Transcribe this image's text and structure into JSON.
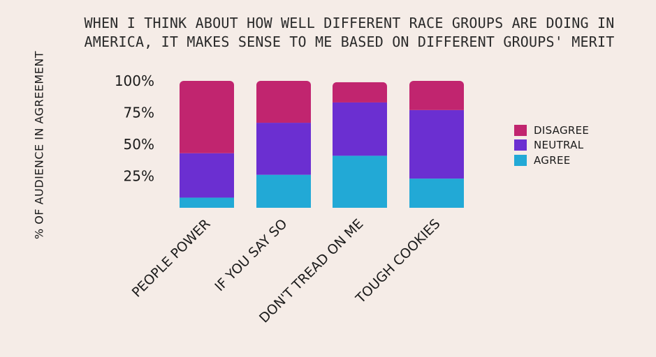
{
  "title": {
    "line1": "WHEN I THINK ABOUT HOW WELL DIFFERENT RACE GROUPS ARE DOING IN",
    "line2": "AMERICA, IT MAKES SENSE TO ME BASED ON DIFFERENT GROUPS' MERIT"
  },
  "colors": {
    "background": "#f5ece7",
    "disagree": "#c1256f",
    "neutral": "#6b2fd1",
    "agree": "#22a9d6"
  },
  "chart_data": {
    "type": "bar",
    "stacked": true,
    "title": "WHEN I THINK ABOUT HOW WELL DIFFERENT RACE GROUPS ARE DOING IN AMERICA, IT MAKES SENSE TO ME BASED ON DIFFERENT GROUPS' MERIT",
    "xlabel": "",
    "ylabel": "% OF AUDIENCE IN AGREEMENT",
    "ylim": [
      0,
      100
    ],
    "yticks": [
      25,
      50,
      75,
      100
    ],
    "ytick_labels": [
      "25%",
      "50%",
      "75%",
      "100%"
    ],
    "grid": false,
    "legend_position": "right",
    "categories": [
      "PEOPLE POWER",
      "IF YOU SAY SO",
      "DON'T TREAD ON ME",
      "TOUGH COOKIES"
    ],
    "series": [
      {
        "name": "AGREE",
        "color": "#22a9d6",
        "values": [
          8,
          26,
          41,
          23
        ]
      },
      {
        "name": "NEUTRAL",
        "color": "#6b2fd1",
        "values": [
          35,
          41,
          42,
          54
        ]
      },
      {
        "name": "DISAGREE",
        "color": "#c1256f",
        "values": [
          57,
          33,
          16,
          23
        ]
      }
    ],
    "legend_order": [
      "DISAGREE",
      "NEUTRAL",
      "AGREE"
    ]
  }
}
